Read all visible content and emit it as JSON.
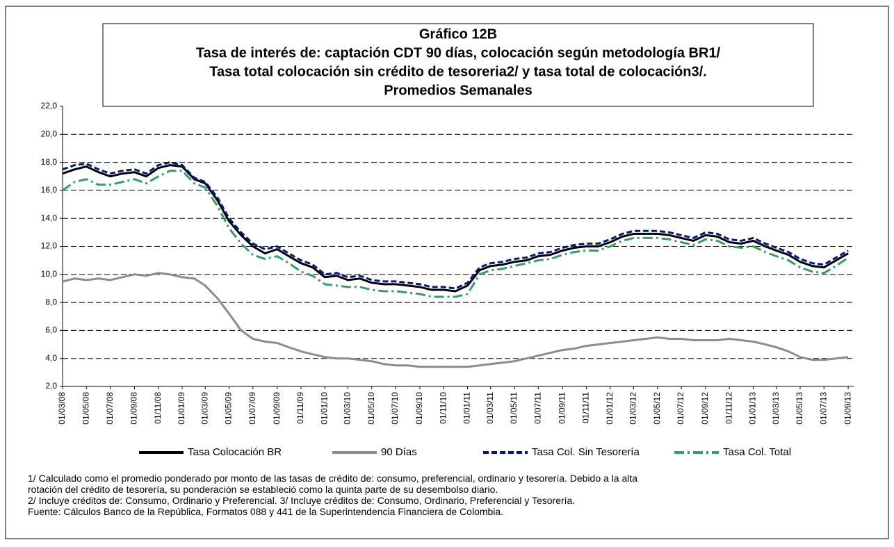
{
  "chart_data": {
    "type": "line",
    "title": "Gráfico 12B",
    "subtitle": [
      "Tasa de interés de: captación CDT 90 días,  colocación según metodología BR1/",
      "Tasa total colocación sin crédito de tesoreria2/ y tasa total de colocación3/.",
      "Promedios Semanales"
    ],
    "notes": [
      "1/ Calculado como el promedio ponderado por monto de las tasas de crédito de: consumo, preferencial, ordinario y tesorería.  Debido a la alta",
      "rotación del crédito de tesorería,  su ponderación se estableció como la quinta parte de su desembolso diario.",
      "2/ Incluye créditos de: Consumo, Ordinario y Preferencial.   3/ Incluye créditos de: Consumo, Ordinario, Preferencial y Tesorería.",
      "Fuente: Cálculos Banco de la República, Formatos 088 y 441 de la Superintendencia Financiera de Colombia."
    ],
    "x": [
      "01/03/08",
      "01/04/08",
      "01/05/08",
      "01/06/08",
      "01/07/08",
      "01/08/08",
      "01/09/08",
      "01/10/08",
      "01/11/08",
      "01/12/08",
      "01/01/09",
      "01/02/09",
      "01/03/09",
      "01/04/09",
      "01/05/09",
      "01/06/09",
      "01/07/09",
      "01/08/09",
      "01/09/09",
      "01/10/09",
      "01/11/09",
      "01/12/09",
      "01/01/10",
      "01/02/10",
      "01/03/10",
      "01/04/10",
      "01/05/10",
      "01/06/10",
      "01/07/10",
      "01/08/10",
      "01/09/10",
      "01/10/10",
      "01/11/10",
      "01/12/10",
      "01/01/11",
      "01/02/11",
      "01/03/11",
      "01/04/11",
      "01/05/11",
      "01/06/11",
      "01/07/11",
      "01/08/11",
      "01/09/11",
      "01/10/11",
      "01/11/11",
      "01/12/11",
      "01/01/12",
      "01/02/12",
      "01/03/12",
      "01/04/12",
      "01/05/12",
      "01/06/12",
      "01/07/12",
      "01/08/12",
      "01/09/12",
      "01/10/12",
      "01/11/12",
      "01/12/12",
      "01/01/13",
      "01/02/13",
      "01/03/13",
      "01/04/13",
      "01/05/13",
      "01/06/13",
      "01/07/13",
      "01/08/13",
      "01/09/13"
    ],
    "series": [
      {
        "name": "Tasa Colocación BR",
        "color": "#000000",
        "width": 3,
        "dash": "none",
        "values": [
          17.2,
          17.5,
          17.7,
          17.3,
          17.0,
          17.2,
          17.3,
          17.0,
          17.6,
          17.8,
          17.7,
          16.8,
          16.5,
          15.3,
          13.8,
          12.8,
          12.0,
          11.5,
          11.8,
          11.3,
          10.8,
          10.5,
          9.8,
          9.9,
          9.6,
          9.7,
          9.4,
          9.3,
          9.3,
          9.2,
          9.1,
          8.9,
          8.9,
          8.8,
          9.2,
          10.3,
          10.6,
          10.7,
          10.9,
          11.0,
          11.3,
          11.4,
          11.7,
          11.9,
          12.0,
          12.0,
          12.3,
          12.7,
          12.9,
          12.9,
          12.9,
          12.8,
          12.6,
          12.4,
          12.8,
          12.7,
          12.3,
          12.2,
          12.4,
          12.0,
          11.7,
          11.4,
          10.9,
          10.6,
          10.5,
          11.0,
          11.5
        ]
      },
      {
        "name": "90 Días",
        "color": "#8c8c8c",
        "width": 3,
        "dash": "none",
        "values": [
          9.5,
          9.7,
          9.6,
          9.7,
          9.6,
          9.8,
          10.0,
          9.9,
          10.1,
          10.0,
          9.8,
          9.7,
          9.2,
          8.3,
          7.2,
          6.0,
          5.4,
          5.2,
          5.1,
          4.8,
          4.5,
          4.3,
          4.1,
          4.0,
          4.0,
          3.9,
          3.8,
          3.6,
          3.5,
          3.5,
          3.4,
          3.4,
          3.4,
          3.4,
          3.4,
          3.5,
          3.6,
          3.7,
          3.8,
          4.0,
          4.2,
          4.4,
          4.6,
          4.7,
          4.9,
          5.0,
          5.1,
          5.2,
          5.3,
          5.4,
          5.5,
          5.4,
          5.4,
          5.3,
          5.3,
          5.3,
          5.4,
          5.3,
          5.2,
          5.0,
          4.8,
          4.5,
          4.1,
          3.9,
          3.9,
          4.0,
          4.1
        ]
      },
      {
        "name": "Tasa Col. Sin Tesorería",
        "color": "#001a7a",
        "width": 3,
        "dash": "8 4",
        "values": [
          17.5,
          17.8,
          17.9,
          17.5,
          17.2,
          17.4,
          17.5,
          17.2,
          17.8,
          18.0,
          17.8,
          16.9,
          16.6,
          15.5,
          14.0,
          13.0,
          12.2,
          11.8,
          12.0,
          11.5,
          11.0,
          10.7,
          10.0,
          10.1,
          9.8,
          9.9,
          9.6,
          9.5,
          9.5,
          9.4,
          9.3,
          9.1,
          9.1,
          9.0,
          9.4,
          10.5,
          10.8,
          10.9,
          11.1,
          11.2,
          11.5,
          11.6,
          11.9,
          12.1,
          12.2,
          12.2,
          12.5,
          12.9,
          13.1,
          13.1,
          13.1,
          13.0,
          12.8,
          12.6,
          13.0,
          12.9,
          12.5,
          12.4,
          12.6,
          12.2,
          11.9,
          11.6,
          11.1,
          10.8,
          10.7,
          11.2,
          11.7
        ]
      },
      {
        "name": "Tasa Col. Total",
        "color": "#3a9a6a",
        "width": 3,
        "dash": "14 5 3 5",
        "values": [
          16.0,
          16.6,
          16.8,
          16.4,
          16.4,
          16.6,
          16.8,
          16.5,
          17.0,
          17.4,
          17.4,
          16.5,
          16.2,
          14.9,
          13.3,
          12.2,
          11.4,
          11.1,
          11.3,
          10.8,
          10.2,
          9.9,
          9.3,
          9.2,
          9.1,
          9.1,
          8.9,
          8.8,
          8.8,
          8.7,
          8.6,
          8.4,
          8.4,
          8.4,
          8.6,
          10.0,
          10.3,
          10.4,
          10.6,
          10.8,
          11.0,
          11.1,
          11.4,
          11.6,
          11.7,
          11.7,
          12.0,
          12.4,
          12.6,
          12.6,
          12.6,
          12.5,
          12.3,
          12.1,
          12.5,
          12.4,
          12.0,
          11.9,
          12.0,
          11.6,
          11.3,
          11.0,
          10.5,
          10.2,
          10.1,
          10.6,
          11.2
        ]
      }
    ],
    "xlim": [
      "01/03/08",
      "15/09/13"
    ],
    "xticks": [
      "01/03/08",
      "01/05/08",
      "01/07/08",
      "01/09/08",
      "01/11/08",
      "01/01/09",
      "01/03/09",
      "01/05/09",
      "01/07/09",
      "01/09/09",
      "01/11/09",
      "01/01/10",
      "01/03/10",
      "01/05/10",
      "01/07/10",
      "01/09/10",
      "01/11/10",
      "01/01/11",
      "01/03/11",
      "01/05/11",
      "01/07/11",
      "01/09/11",
      "01/11/11",
      "01/01/12",
      "01/03/12",
      "01/05/12",
      "01/07/12",
      "01/09/12",
      "01/11/12",
      "01/01/13",
      "01/03/13",
      "01/05/13",
      "01/07/13",
      "01/09/13"
    ],
    "ylim": [
      2,
      22
    ],
    "yticks": [
      {
        "value": 2,
        "label": "2,0"
      },
      {
        "value": 4,
        "label": "4,0"
      },
      {
        "value": 6,
        "label": "6,0"
      },
      {
        "value": 8,
        "label": "8,0"
      },
      {
        "value": 10,
        "label": "10,0"
      },
      {
        "value": 12,
        "label": "12,0"
      },
      {
        "value": 14,
        "label": "14,0"
      },
      {
        "value": 16,
        "label": "16,0"
      },
      {
        "value": 18,
        "label": "18,0"
      },
      {
        "value": 20,
        "label": "20,0"
      },
      {
        "value": 22,
        "label": "22,0"
      }
    ],
    "grid": true,
    "legend": "bottom"
  }
}
